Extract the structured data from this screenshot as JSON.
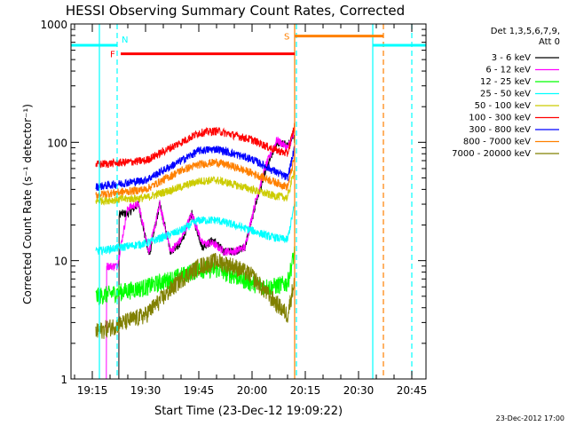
{
  "chart_data": {
    "type": "line",
    "title": "HESSI Observing Summary Count Rates, Corrected",
    "xlabel": "Start Time (23-Dec-12 19:09:22)",
    "ylabel": "Corrected Count Rate (s⁻¹ detector⁻¹)",
    "footer": "23-Dec-2012 17:00",
    "y_scale": "log",
    "ylim": [
      1,
      1000
    ],
    "xlim": [
      "19:09",
      "20:49"
    ],
    "x_ticks": [
      "19:15",
      "19:30",
      "19:45",
      "20:00",
      "20:15",
      "20:30",
      "20:45"
    ],
    "y_ticks": [
      "1",
      "10",
      "100",
      "1000"
    ],
    "legend_position": "top-right",
    "legend_header": [
      "Det 1,3,5,6,7,9,",
      "Att 0"
    ],
    "series": [
      {
        "name": "3 - 6 keV",
        "color": "#000000",
        "base": 11,
        "mod": "dips",
        "x": [
          "19:16",
          "19:20",
          "19:25",
          "19:28",
          "19:31",
          "19:34",
          "19:37",
          "19:40",
          "19:43",
          "19:46",
          "19:49",
          "19:52",
          "19:55",
          "19:58",
          "20:01",
          "20:04",
          "20:07",
          "20:10",
          "20:12"
        ],
        "y": [
          0,
          0,
          25,
          30,
          11,
          30,
          12,
          14,
          25,
          13,
          15,
          12,
          12,
          13,
          30,
          60,
          100,
          95,
          110
        ]
      },
      {
        "name": "6 - 12 keV",
        "color": "#ff00ff",
        "base": 9,
        "mod": "dips",
        "x": [
          "19:16",
          "19:22",
          "19:25",
          "19:28",
          "19:31",
          "19:34",
          "19:37",
          "19:40",
          "19:43",
          "19:46",
          "19:49",
          "19:52",
          "19:55",
          "19:58",
          "20:01",
          "20:04",
          "20:07",
          "20:10",
          "20:12"
        ],
        "y": [
          0,
          9,
          28,
          30,
          12,
          30,
          12,
          15,
          25,
          14,
          14,
          12,
          12,
          13,
          32,
          65,
          105,
          90,
          120
        ]
      },
      {
        "name": "12 - 25 keV",
        "color": "#00ff00",
        "base": 5,
        "mod": "hump",
        "x": [
          "19:16",
          "19:30",
          "19:40",
          "19:45",
          "19:50",
          "19:55",
          "20:00",
          "20:05",
          "20:10",
          "20:12"
        ],
        "y": [
          5,
          6,
          7.5,
          8.5,
          8.5,
          7.5,
          6.5,
          6,
          6.5,
          12
        ]
      },
      {
        "name": "25 - 50 keV",
        "color": "#00ffff",
        "base": 12,
        "mod": "hump",
        "x": [
          "19:16",
          "19:30",
          "19:40",
          "19:45",
          "19:50",
          "19:55",
          "20:00",
          "20:05",
          "20:10",
          "20:12"
        ],
        "y": [
          12,
          14,
          18,
          22,
          22,
          20,
          18,
          16,
          15,
          30
        ]
      },
      {
        "name": "50 - 100 keV",
        "color": "#cccc00",
        "base": 32,
        "mod": "hump",
        "x": [
          "19:16",
          "19:30",
          "19:40",
          "19:45",
          "19:50",
          "19:55",
          "20:00",
          "20:05",
          "20:10",
          "20:12"
        ],
        "y": [
          32,
          34,
          42,
          47,
          48,
          44,
          40,
          36,
          34,
          60
        ]
      },
      {
        "name": "100 - 300 keV",
        "color": "#ff0000",
        "base": 65,
        "mod": "hump",
        "x": [
          "19:16",
          "19:30",
          "19:40",
          "19:45",
          "19:50",
          "19:55",
          "20:00",
          "20:05",
          "20:10",
          "20:12"
        ],
        "y": [
          65,
          70,
          100,
          120,
          125,
          115,
          105,
          90,
          80,
          140
        ]
      },
      {
        "name": "300 - 800 keV",
        "color": "#0000ff",
        "base": 42,
        "mod": "hump",
        "x": [
          "19:16",
          "19:30",
          "19:40",
          "19:45",
          "19:50",
          "19:55",
          "20:00",
          "20:05",
          "20:10",
          "20:12"
        ],
        "y": [
          42,
          48,
          70,
          85,
          88,
          80,
          72,
          60,
          50,
          90
        ]
      },
      {
        "name": "800 - 7000 keV",
        "color": "#ff8000",
        "base": 36,
        "mod": "hump",
        "x": [
          "19:16",
          "19:30",
          "19:40",
          "19:45",
          "19:50",
          "19:55",
          "20:00",
          "20:05",
          "20:10",
          "20:12"
        ],
        "y": [
          36,
          40,
          58,
          65,
          68,
          62,
          55,
          48,
          42,
          75
        ]
      },
      {
        "name": "7000 - 20000 keV",
        "color": "#808000",
        "base": 2.5,
        "mod": "hump",
        "x": [
          "19:16",
          "19:30",
          "19:40",
          "19:45",
          "19:50",
          "19:55",
          "20:00",
          "20:05",
          "20:10",
          "20:12"
        ],
        "y": [
          2.5,
          3.5,
          7,
          9,
          10,
          9,
          7.5,
          5,
          3.5,
          7
        ]
      }
    ],
    "flag_bars": [
      {
        "label": "",
        "color": "#00ffff",
        "x0": "19:09",
        "x1": "19:22",
        "y": 660
      },
      {
        "label": "F",
        "color": "#ff0000",
        "x0": "19:23",
        "x1": "20:12",
        "y": 560
      },
      {
        "label": "N",
        "color": "#00ffff",
        "label_at": "19:22",
        "y": 660
      },
      {
        "label": "S",
        "color": "#ff8000",
        "x0": "20:12",
        "x1": "20:37",
        "y": 790
      },
      {
        "label": "",
        "color": "#00ffff",
        "x0": "20:34",
        "x1": "20:49",
        "y": 660
      }
    ],
    "vlines": [
      {
        "x": "19:17",
        "color": "#00ffff",
        "style": "solid"
      },
      {
        "x": "19:22",
        "color": "#00ffff",
        "style": "dashed"
      },
      {
        "x": "20:12",
        "color": "#ff8000",
        "style": "solid"
      },
      {
        "x": "20:12",
        "color": "#00ffff",
        "style": "dashed"
      },
      {
        "x": "20:34",
        "color": "#00ffff",
        "style": "solid"
      },
      {
        "x": "20:37",
        "color": "#ff8000",
        "style": "dashed"
      },
      {
        "x": "20:45",
        "color": "#00ffff",
        "style": "dashed"
      }
    ]
  }
}
